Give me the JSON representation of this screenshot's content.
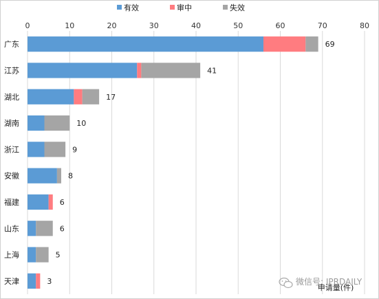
{
  "chart_data": {
    "type": "bar",
    "orientation": "horizontal",
    "stacked": true,
    "categories": [
      "广东",
      "江苏",
      "湖北",
      "湖南",
      "浙江",
      "安徽",
      "福建",
      "山东",
      "上海",
      "天津"
    ],
    "series": [
      {
        "name": "有效",
        "color": "#5b9bd5",
        "values": [
          56,
          26,
          11,
          4,
          4,
          7,
          5,
          2,
          2,
          2
        ]
      },
      {
        "name": "审中",
        "color": "#ff7c80",
        "values": [
          10,
          1,
          2,
          0,
          0,
          0,
          1,
          0,
          0,
          1
        ]
      },
      {
        "name": "失效",
        "color": "#a5a5a5",
        "values": [
          3,
          14,
          4,
          6,
          5,
          1,
          0,
          4,
          3,
          0
        ]
      }
    ],
    "totals": [
      69,
      41,
      17,
      10,
      9,
      8,
      6,
      6,
      5,
      3
    ],
    "x_ticks": [
      0,
      10,
      20,
      30,
      40,
      50,
      60,
      70,
      80
    ],
    "xlim": [
      0,
      80
    ],
    "xlabel": "申请量(件)",
    "legend_position": "top",
    "grid": true
  },
  "watermark": {
    "text": "微信号: IPRDAILY",
    "icon": "wechat-icon"
  }
}
